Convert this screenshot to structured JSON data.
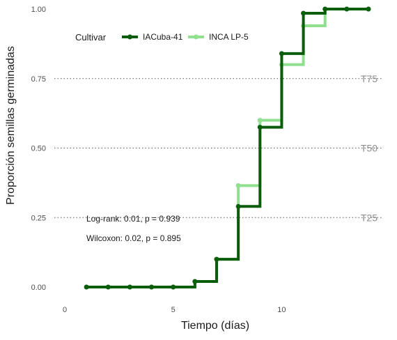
{
  "chart_data": {
    "type": "line",
    "step": true,
    "xlabel": "Tiempo (días)",
    "ylabel": "Proporción semillas germinadas",
    "xlim": [
      0,
      14
    ],
    "ylim": [
      0,
      1
    ],
    "x_ticks": [
      0,
      5,
      10
    ],
    "y_ticks": [
      0.0,
      0.25,
      0.5,
      0.75,
      1.0
    ],
    "y_tick_labels": [
      "0.00",
      "0.25",
      "0.50",
      "0.75",
      "1.00"
    ],
    "grid": false,
    "legend": {
      "title": "Cultivar",
      "placement": "top-left",
      "orientation": "horizontal"
    },
    "reference_lines": [
      {
        "y": 0.25,
        "label": "T25"
      },
      {
        "y": 0.5,
        "label": "T50"
      },
      {
        "y": 0.75,
        "label": "T75"
      }
    ],
    "annotations": [
      "Log-rank: 0.01, p = 0.939",
      "Wilcoxon: 0.02, p = 0.895"
    ],
    "series": [
      {
        "name": "IACuba-41",
        "color": "#0b5d0b",
        "x": [
          1,
          2,
          3,
          4,
          5,
          6,
          7,
          8,
          9,
          10,
          11,
          12,
          13,
          14
        ],
        "y": [
          0.0,
          0.0,
          0.0,
          0.0,
          0.0,
          0.02,
          0.1,
          0.29,
          0.575,
          0.84,
          0.985,
          1.0,
          1.0,
          1.0
        ]
      },
      {
        "name": "INCA LP-5",
        "color": "#90e090",
        "x": [
          1,
          2,
          3,
          4,
          5,
          6,
          7,
          8,
          9,
          10,
          11,
          12,
          13,
          14
        ],
        "y": [
          0.0,
          0.0,
          0.0,
          0.0,
          0.0,
          0.02,
          0.1,
          0.365,
          0.6,
          0.8,
          0.94,
          1.0,
          1.0,
          1.0
        ]
      }
    ]
  }
}
